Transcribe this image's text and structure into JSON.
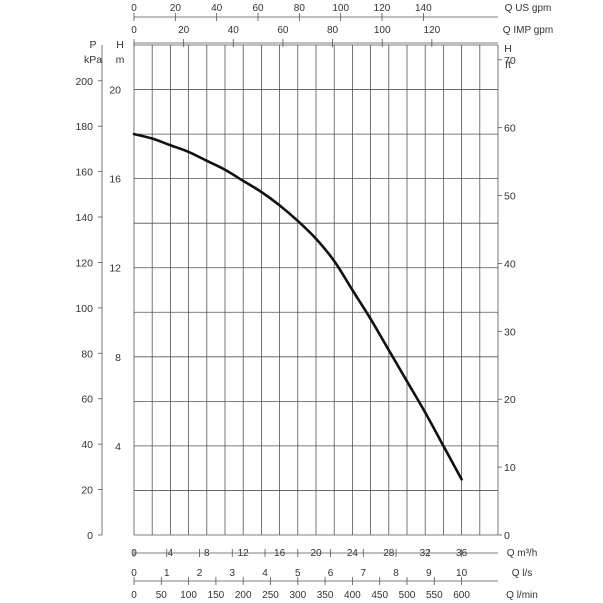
{
  "chart_data": {
    "type": "line",
    "title": "",
    "series": [
      {
        "name": "",
        "x": [
          0,
          2,
          4,
          6,
          8,
          10,
          12,
          14,
          16,
          18,
          20,
          22,
          24,
          26,
          28,
          30,
          32,
          34,
          36
        ],
        "values": [
          18.0,
          17.8,
          17.5,
          17.2,
          16.8,
          16.4,
          15.9,
          15.4,
          14.8,
          14.1,
          13.3,
          12.3,
          11.0,
          9.7,
          8.3,
          6.9,
          5.5,
          4.0,
          2.5
        ]
      }
    ],
    "axes": {
      "bottom": [
        {
          "label": "Q m³/h",
          "ticks": [
            "0",
            "4",
            "8",
            "12",
            "16",
            "20",
            "24",
            "28",
            "32",
            "36"
          ]
        },
        {
          "label": "Q l/s",
          "ticks": [
            "0",
            "1",
            "2",
            "3",
            "4",
            "5",
            "6",
            "7",
            "8",
            "9",
            "10"
          ]
        },
        {
          "label": "Q l/min",
          "ticks": [
            "0",
            "50",
            "100",
            "150",
            "200",
            "250",
            "300",
            "350",
            "400",
            "450",
            "500",
            "550",
            "600"
          ]
        }
      ],
      "top": [
        {
          "label": "Q US gpm",
          "ticks": [
            "0",
            "20",
            "40",
            "60",
            "80",
            "100",
            "120",
            "140"
          ]
        },
        {
          "label": "Q IMP gpm",
          "ticks": [
            "0",
            "20",
            "40",
            "60",
            "80",
            "100",
            "120"
          ]
        }
      ],
      "left": [
        {
          "label_top": "P",
          "label_bottom": "kPa",
          "ticks": [
            "0",
            "20",
            "40",
            "60",
            "80",
            "100",
            "120",
            "140",
            "160",
            "180",
            "200"
          ]
        },
        {
          "label_top": "H",
          "label_bottom": "m",
          "ticks": [
            "4",
            "8",
            "12",
            "16",
            "20"
          ]
        }
      ],
      "right": [
        {
          "label_top": "H",
          "label_bottom": "ft",
          "ticks": [
            "0",
            "10",
            "20",
            "30",
            "40",
            "50",
            "60",
            "70"
          ]
        }
      ]
    },
    "xlim": [
      0,
      40
    ],
    "ylim": [
      0,
      22
    ],
    "grid": true,
    "colors": {
      "curve": "#111111",
      "grid": "#555555",
      "text": "#333333"
    }
  }
}
